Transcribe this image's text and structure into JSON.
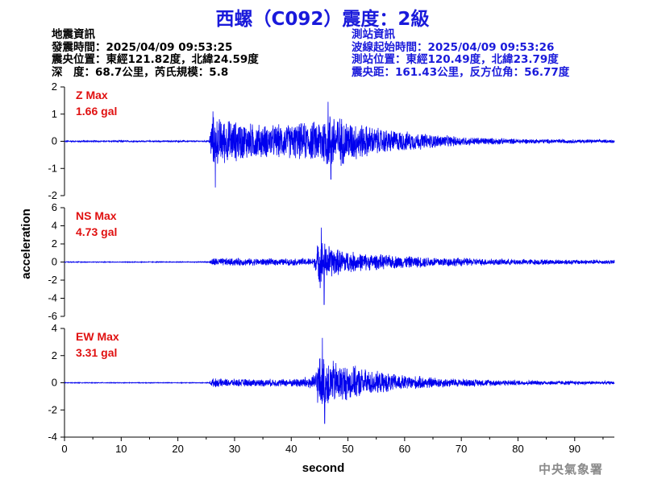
{
  "title": "西螺（C092）震度：2級",
  "earthquake_info": {
    "heading": "地震資訊",
    "origin_time": "發震時間：2025/04/09 09:53:25",
    "epicenter": "震央位置：東經121.82度，北緯24.59度",
    "depth_magnitude": "深　度：68.7公里，芮氏規模：5.8"
  },
  "station_info": {
    "heading": "測站資訊",
    "wave_start": "波線起始時間：2025/04/09 09:53:26",
    "station_location": "測站位置：東經120.49度，北緯23.79度",
    "distance_azimuth": "震央距：161.43公里，反方位角：56.77度"
  },
  "footer": {
    "organization": "中央氣象署"
  },
  "colors": {
    "title": "#1a1adb",
    "trace": "#0000ee",
    "max_label": "#e01010",
    "station_text": "#1a1adb"
  },
  "chart_data": {
    "type": "line",
    "xlabel": "second",
    "ylabel": "acceleration",
    "xlim": [
      0,
      97
    ],
    "x_ticks": [
      0,
      10,
      20,
      30,
      40,
      50,
      60,
      70,
      80,
      90
    ],
    "series": [
      {
        "name": "Z",
        "max_label": "Z Max",
        "max_value": "1.66 gal",
        "ylim": [
          -2,
          2
        ],
        "y_ticks": [
          -2,
          -1,
          0,
          1,
          2
        ],
        "envelope": {
          "t": [
            0,
            25.5,
            26,
            28,
            32,
            36,
            40,
            44,
            47,
            50,
            55,
            60,
            65,
            70,
            80,
            97
          ],
          "amp": [
            0.03,
            0.03,
            1.0,
            0.9,
            0.75,
            0.65,
            0.7,
            0.8,
            1.2,
            0.85,
            0.55,
            0.4,
            0.28,
            0.18,
            0.1,
            0.06
          ]
        },
        "peaks": [
          {
            "t": 26.2,
            "v": 1.1
          },
          {
            "t": 26.6,
            "v": -1.7
          },
          {
            "t": 46.5,
            "v": 1.45
          },
          {
            "t": 47,
            "v": -1.4
          }
        ]
      },
      {
        "name": "NS",
        "max_label": "NS Max",
        "max_value": "4.73 gal",
        "ylim": [
          -6,
          6
        ],
        "y_ticks": [
          -6,
          -4,
          -2,
          0,
          2,
          4,
          6
        ],
        "envelope": {
          "t": [
            0,
            25.5,
            26,
            30,
            40,
            44,
            45,
            46,
            48,
            52,
            58,
            65,
            75,
            97
          ],
          "amp": [
            0.05,
            0.05,
            0.5,
            0.45,
            0.4,
            0.5,
            3.0,
            2.3,
            1.6,
            1.1,
            0.8,
            0.6,
            0.4,
            0.25
          ]
        },
        "peaks": [
          {
            "t": 45.3,
            "v": 3.8
          },
          {
            "t": 45.8,
            "v": -4.7
          }
        ]
      },
      {
        "name": "EW",
        "max_label": "EW Max",
        "max_value": "3.31 gal",
        "ylim": [
          -4,
          4
        ],
        "y_ticks": [
          -4,
          -2,
          0,
          2,
          4
        ],
        "envelope": {
          "t": [
            0,
            25.5,
            26,
            30,
            40,
            44,
            45,
            46.5,
            50,
            55,
            60,
            68,
            80,
            97
          ],
          "amp": [
            0.03,
            0.03,
            0.35,
            0.3,
            0.3,
            0.6,
            2.2,
            1.9,
            1.4,
            0.9,
            0.6,
            0.35,
            0.2,
            0.12
          ]
        },
        "peaks": [
          {
            "t": 45.5,
            "v": 3.3
          },
          {
            "t": 45.9,
            "v": -3.0
          }
        ]
      }
    ]
  }
}
